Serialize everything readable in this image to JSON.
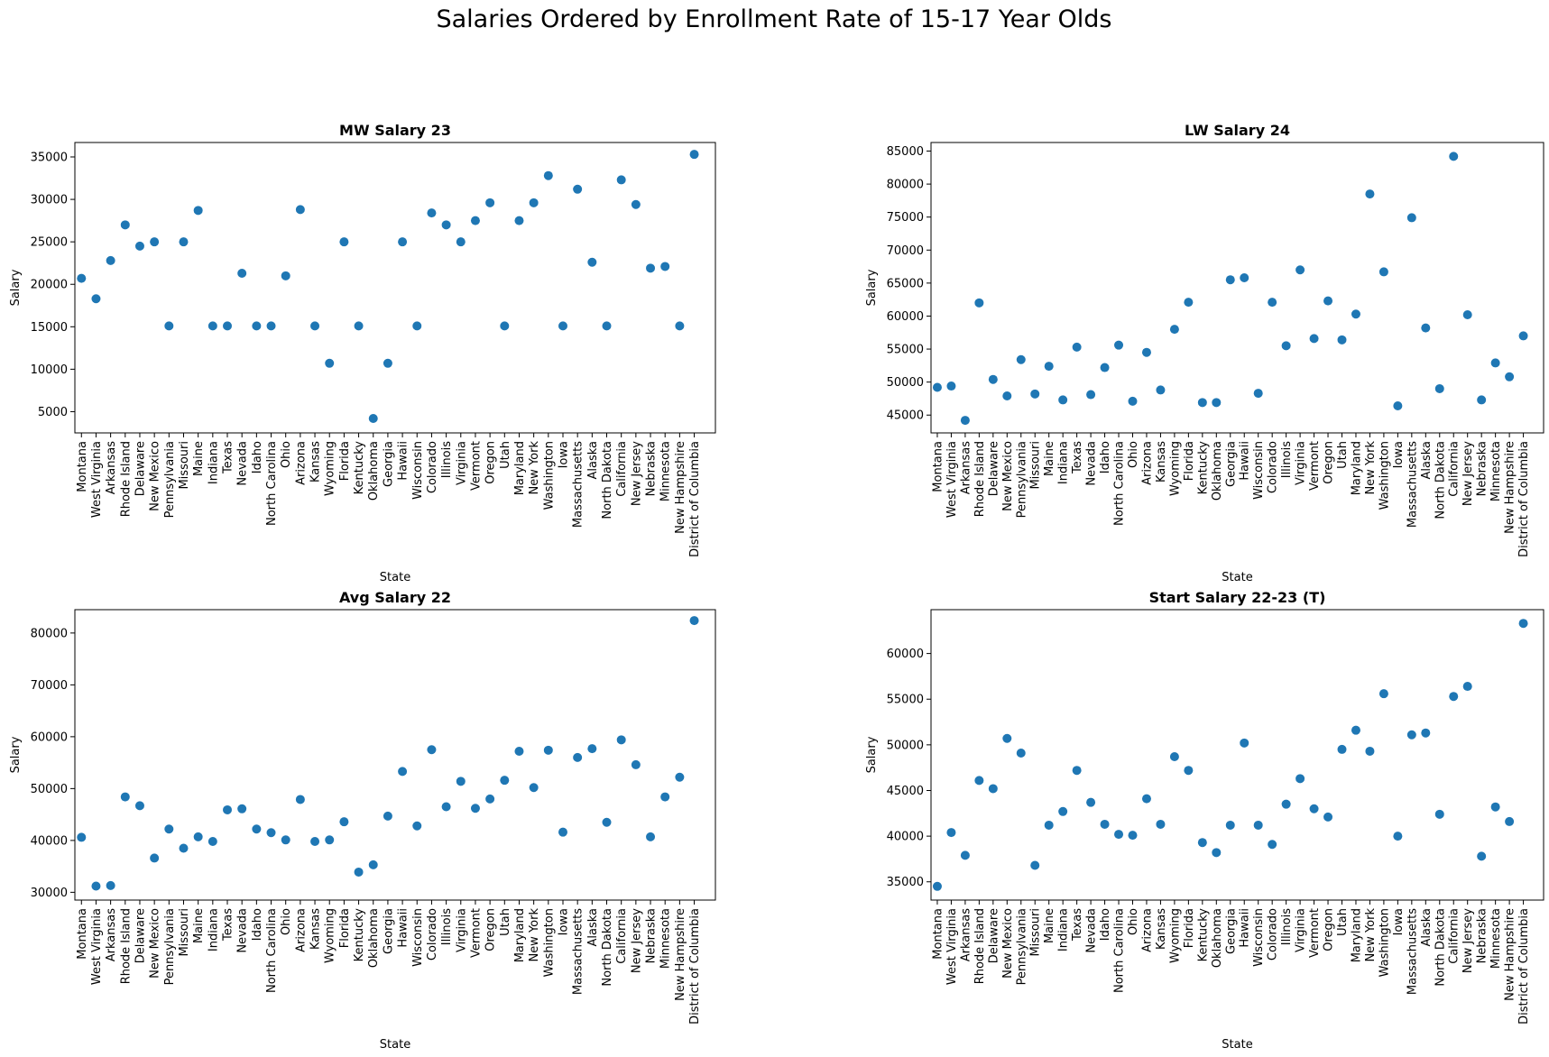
{
  "figure": {
    "title": "Salaries Ordered by Enrollment Rate of 15-17 Year Olds",
    "marker_color": "#1f77b4"
  },
  "chart_data": [
    {
      "type": "scatter",
      "title": "MW Salary 23",
      "xlabel": "State",
      "ylabel": "Salary",
      "ylim": [
        2500,
        36700
      ],
      "yticks": [
        5000,
        10000,
        15000,
        20000,
        25000,
        30000,
        35000
      ],
      "categories": [
        "Montana",
        "West Virginia",
        "Arkansas",
        "Rhode Island",
        "Delaware",
        "New Mexico",
        "Pennsylvania",
        "Missouri",
        "Maine",
        "Indiana",
        "Texas",
        "Nevada",
        "Idaho",
        "North Carolina",
        "Ohio",
        "Arizona",
        "Kansas",
        "Wyoming",
        "Florida",
        "Kentucky",
        "Oklahoma",
        "Georgia",
        "Hawaii",
        "Wisconsin",
        "Colorado",
        "Illinois",
        "Virginia",
        "Vermont",
        "Oregon",
        "Utah",
        "Maryland",
        "New York",
        "Washington",
        "Iowa",
        "Massachusetts",
        "Alaska",
        "North Dakota",
        "California",
        "New Jersey",
        "Nebraska",
        "Minnesota",
        "New Hampshire",
        "District of Columbia"
      ],
      "values": [
        20700,
        18300,
        22800,
        27000,
        24500,
        25000,
        15100,
        25000,
        28700,
        15100,
        15100,
        21300,
        15100,
        15100,
        21000,
        28800,
        15100,
        10700,
        25000,
        15100,
        4200,
        10700,
        25000,
        15100,
        28400,
        27000,
        25000,
        27500,
        29600,
        15100,
        27500,
        29600,
        32800,
        15100,
        31200,
        22600,
        15100,
        32300,
        29400,
        21900,
        22100,
        15100,
        35300
      ]
    },
    {
      "type": "scatter",
      "title": "LW Salary 24",
      "xlabel": "State",
      "ylabel": "Salary",
      "ylim": [
        42300,
        86300
      ],
      "yticks": [
        45000,
        50000,
        55000,
        60000,
        65000,
        70000,
        75000,
        80000,
        85000
      ],
      "categories": [
        "Montana",
        "West Virginia",
        "Arkansas",
        "Rhode Island",
        "Delaware",
        "New Mexico",
        "Pennsylvania",
        "Missouri",
        "Maine",
        "Indiana",
        "Texas",
        "Nevada",
        "Idaho",
        "North Carolina",
        "Ohio",
        "Arizona",
        "Kansas",
        "Wyoming",
        "Florida",
        "Kentucky",
        "Oklahoma",
        "Georgia",
        "Hawaii",
        "Wisconsin",
        "Colorado",
        "Illinois",
        "Virginia",
        "Vermont",
        "Oregon",
        "Utah",
        "Maryland",
        "New York",
        "Washington",
        "Iowa",
        "Massachusetts",
        "Alaska",
        "North Dakota",
        "California",
        "New Jersey",
        "Nebraska",
        "Minnesota",
        "New Hampshire",
        "District of Columbia"
      ],
      "values": [
        49200,
        49400,
        44200,
        62000,
        50400,
        47900,
        53400,
        48200,
        52400,
        47300,
        55300,
        48100,
        52200,
        55600,
        47100,
        54500,
        48800,
        58000,
        62100,
        46900,
        46900,
        65500,
        65800,
        48300,
        62100,
        55500,
        67000,
        56600,
        62300,
        56400,
        60300,
        78500,
        66700,
        46400,
        74900,
        58200,
        49000,
        84200,
        60200,
        47300,
        52900,
        50800,
        57000
      ]
    },
    {
      "type": "scatter",
      "title": "Avg Salary 22",
      "xlabel": "State",
      "ylabel": "Salary",
      "ylim": [
        28500,
        84500
      ],
      "yticks": [
        30000,
        40000,
        50000,
        60000,
        70000,
        80000
      ],
      "categories": [
        "Montana",
        "West Virginia",
        "Arkansas",
        "Rhode Island",
        "Delaware",
        "New Mexico",
        "Pennsylvania",
        "Missouri",
        "Maine",
        "Indiana",
        "Texas",
        "Nevada",
        "Idaho",
        "North Carolina",
        "Ohio",
        "Arizona",
        "Kansas",
        "Wyoming",
        "Florida",
        "Kentucky",
        "Oklahoma",
        "Georgia",
        "Hawaii",
        "Wisconsin",
        "Colorado",
        "Illinois",
        "Virginia",
        "Vermont",
        "Oregon",
        "Utah",
        "Maryland",
        "New York",
        "Washington",
        "Iowa",
        "Massachusetts",
        "Alaska",
        "North Dakota",
        "California",
        "New Jersey",
        "Nebraska",
        "Minnesota",
        "New Hampshire",
        "District of Columbia"
      ],
      "values": [
        40600,
        31200,
        31300,
        48400,
        46700,
        36600,
        42200,
        38500,
        40700,
        39800,
        45900,
        46100,
        42200,
        41500,
        40100,
        47900,
        39800,
        40100,
        43600,
        33900,
        35300,
        44700,
        53300,
        42800,
        57500,
        46500,
        51400,
        46200,
        48000,
        51600,
        57200,
        50200,
        57400,
        41600,
        56000,
        57700,
        43500,
        59400,
        54600,
        40700,
        48400,
        52200,
        82400
      ]
    },
    {
      "type": "scatter",
      "title": "Start Salary 22-23 (T)",
      "xlabel": "State",
      "ylabel": "Salary",
      "ylim": [
        33000,
        64800
      ],
      "yticks": [
        35000,
        40000,
        45000,
        50000,
        55000,
        60000
      ],
      "categories": [
        "Montana",
        "West Virginia",
        "Arkansas",
        "Rhode Island",
        "Delaware",
        "New Mexico",
        "Pennsylvania",
        "Missouri",
        "Maine",
        "Indiana",
        "Texas",
        "Nevada",
        "Idaho",
        "North Carolina",
        "Ohio",
        "Arizona",
        "Kansas",
        "Wyoming",
        "Florida",
        "Kentucky",
        "Oklahoma",
        "Georgia",
        "Hawaii",
        "Wisconsin",
        "Colorado",
        "Illinois",
        "Virginia",
        "Vermont",
        "Oregon",
        "Utah",
        "Maryland",
        "New York",
        "Washington",
        "Iowa",
        "Massachusetts",
        "Alaska",
        "North Dakota",
        "California",
        "New Jersey",
        "Nebraska",
        "Minnesota",
        "New Hampshire",
        "District of Columbia"
      ],
      "values": [
        34500,
        40400,
        37900,
        46100,
        45200,
        50700,
        49100,
        36800,
        41200,
        42700,
        47200,
        43700,
        41300,
        40200,
        40100,
        44100,
        41300,
        48700,
        47200,
        39300,
        38200,
        41200,
        50200,
        41200,
        39100,
        43500,
        46300,
        43000,
        42100,
        49500,
        51600,
        49300,
        55600,
        40000,
        51100,
        51300,
        42400,
        55300,
        56400,
        37800,
        43200,
        41600,
        63300
      ]
    }
  ]
}
